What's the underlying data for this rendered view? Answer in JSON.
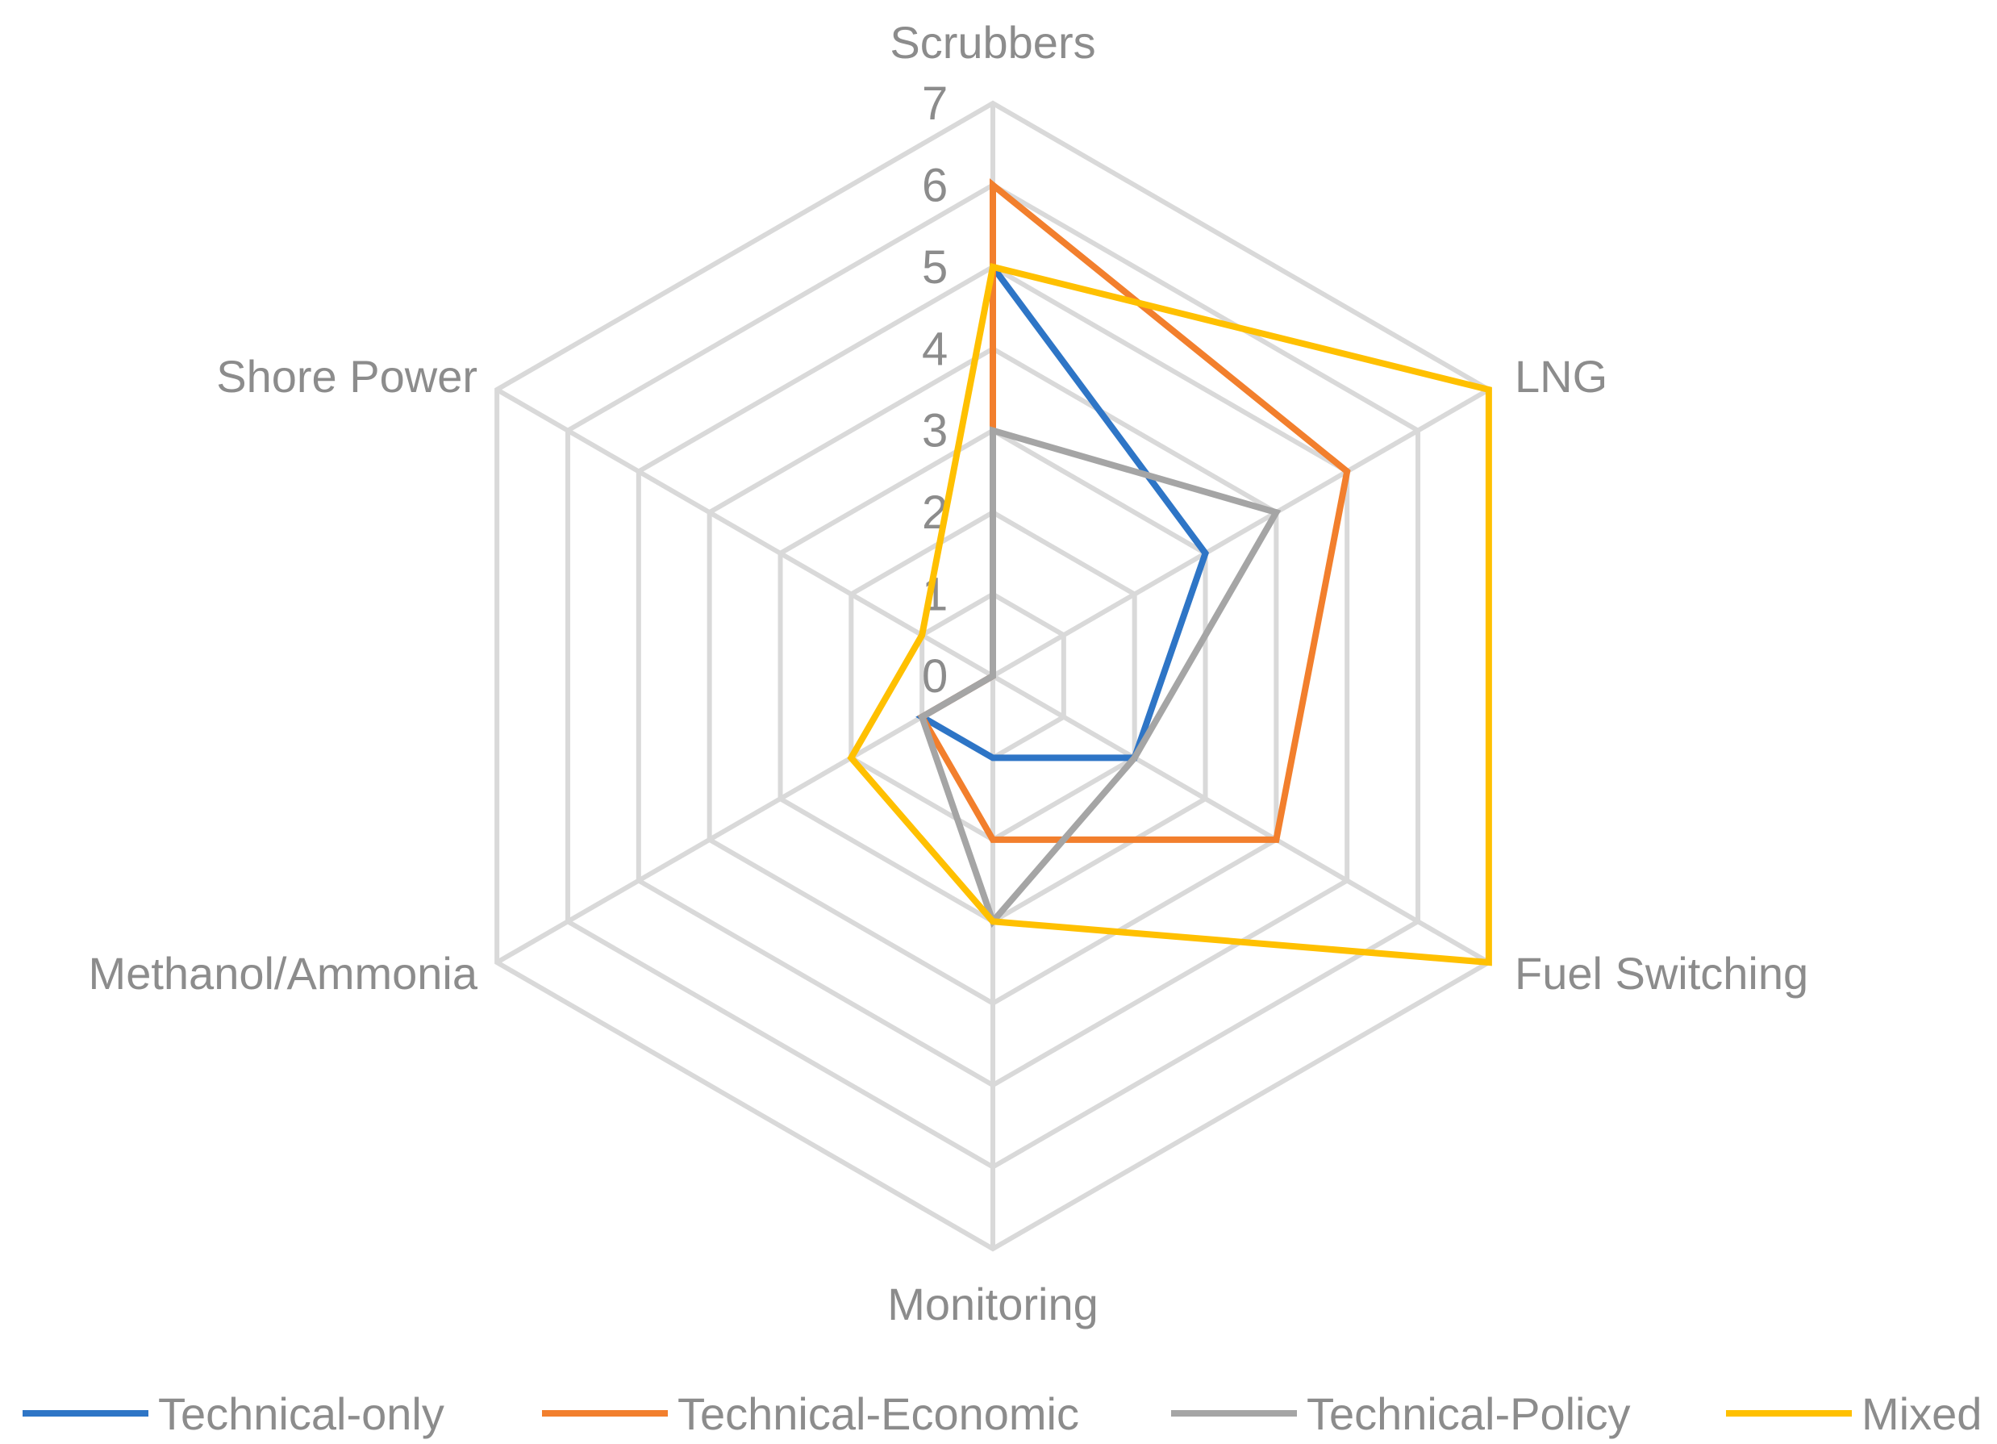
{
  "chart_data": {
    "type": "radar",
    "title": "",
    "categories": [
      "Scrubbers",
      "LNG",
      "Fuel Switching",
      "Monitoring",
      "Methanol/Ammonia",
      "Shore Power"
    ],
    "rlim": [
      0,
      7
    ],
    "ticks": [
      "0",
      "1",
      "2",
      "3",
      "4",
      "5",
      "6",
      "7"
    ],
    "grid": true,
    "legend_position": "bottom",
    "series": [
      {
        "name": "Technical-only",
        "color": "#2e75c6",
        "values": [
          5,
          3,
          2,
          1,
          1,
          0
        ]
      },
      {
        "name": "Technical-Economic",
        "color": "#f27f2d",
        "values": [
          6,
          5,
          4,
          2,
          1,
          0
        ]
      },
      {
        "name": "Technical-Policy",
        "color": "#a5a5a5",
        "values": [
          3,
          4,
          2,
          3,
          1,
          0
        ]
      },
      {
        "name": "Mixed",
        "color": "#ffc000",
        "values": [
          5,
          7,
          7,
          3,
          2,
          1
        ]
      }
    ]
  }
}
